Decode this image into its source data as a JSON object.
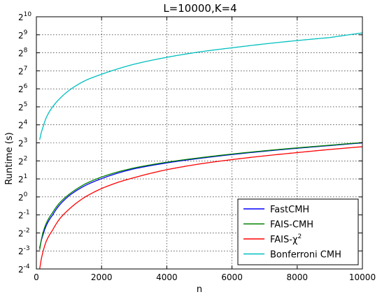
{
  "chart_data": {
    "type": "line",
    "title": "L=10000,K=4",
    "xlabel": "n",
    "ylabel": "Runtime (s)",
    "xlim": [
      0,
      10000
    ],
    "ylim_log2": [
      -4,
      10
    ],
    "y_scale": "log2",
    "grid": true,
    "legend_position": "bottom-right",
    "x_ticks": [
      {
        "value": 0,
        "label": "0"
      },
      {
        "value": 2000,
        "label": "2000"
      },
      {
        "value": 4000,
        "label": "4000"
      },
      {
        "value": 6000,
        "label": "6000"
      },
      {
        "value": 8000,
        "label": "8000"
      },
      {
        "value": 10000,
        "label": "10000"
      }
    ],
    "y_ticks": [
      {
        "exp": 10,
        "base": "2",
        "sup": "10"
      },
      {
        "exp": 9,
        "base": "2",
        "sup": "9"
      },
      {
        "exp": 8,
        "base": "2",
        "sup": "8"
      },
      {
        "exp": 7,
        "base": "2",
        "sup": "7"
      },
      {
        "exp": 6,
        "base": "2",
        "sup": "6"
      },
      {
        "exp": 5,
        "base": "2",
        "sup": "5"
      },
      {
        "exp": 4,
        "base": "2",
        "sup": "4"
      },
      {
        "exp": 3,
        "base": "2",
        "sup": "3"
      },
      {
        "exp": 2,
        "base": "2",
        "sup": "2"
      },
      {
        "exp": 1,
        "base": "2",
        "sup": "1"
      },
      {
        "exp": 0,
        "base": "2",
        "sup": "0"
      },
      {
        "exp": -1,
        "base": "2",
        "sup": "-1"
      },
      {
        "exp": -2,
        "base": "2",
        "sup": "-2"
      },
      {
        "exp": -3,
        "base": "2",
        "sup": "-3"
      },
      {
        "exp": -4,
        "base": "2",
        "sup": "-4"
      }
    ],
    "x": [
      100,
      200,
      300,
      500,
      700,
      1000,
      1500,
      2000,
      2500,
      3000,
      4000,
      5000,
      6000,
      7000,
      8000,
      9000,
      10000
    ],
    "series": [
      {
        "name": "FastCMH",
        "name_sup": "",
        "color": "#0000ff",
        "values": [
          0.14,
          0.23,
          0.33,
          0.5,
          0.72,
          1.04,
          1.55,
          2.02,
          2.5,
          2.95,
          3.7,
          4.4,
          5.1,
          5.8,
          6.5,
          7.2,
          8.0
        ]
      },
      {
        "name": "FAIS-CMH",
        "name_sup": "",
        "color": "#008000",
        "values": [
          0.13,
          0.25,
          0.36,
          0.55,
          0.78,
          1.1,
          1.65,
          2.15,
          2.62,
          3.05,
          3.8,
          4.5,
          5.2,
          5.9,
          6.6,
          7.3,
          8.1
        ]
      },
      {
        "name": "FAIS-χ",
        "name_sup": "2",
        "color": "#ff0000",
        "values": [
          0.062,
          0.12,
          0.18,
          0.28,
          0.42,
          0.62,
          1.0,
          1.38,
          1.75,
          2.1,
          2.85,
          3.55,
          4.2,
          4.85,
          5.5,
          6.2,
          6.9
        ]
      },
      {
        "name": "Bonferroni CMH",
        "name_sup": "",
        "color": "#00bfbf",
        "values": [
          9.0,
          14.5,
          21.0,
          32.0,
          43.0,
          60.0,
          88.0,
          112.0,
          138.0,
          165.0,
          215.0,
          265.0,
          310.0,
          360.0,
          410.0,
          460.0,
          550.0
        ]
      }
    ]
  }
}
